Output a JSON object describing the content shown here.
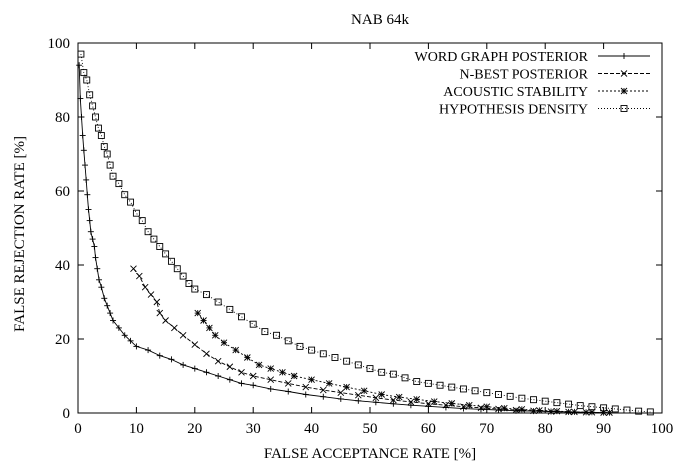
{
  "chart_data": {
    "type": "line",
    "title": "NAB 64k",
    "xlabel": "FALSE ACCEPTANCE RATE [%]",
    "ylabel": "FALSE REJECTION RATE [%]",
    "xlim": [
      0,
      100
    ],
    "ylim": [
      0,
      100
    ],
    "xticks": [
      0,
      10,
      20,
      30,
      40,
      50,
      60,
      70,
      80,
      90,
      100
    ],
    "yticks": [
      0,
      20,
      40,
      60,
      80,
      100
    ],
    "xtick_labels": [
      "0",
      "10",
      "20",
      "30",
      "40",
      "50",
      "60",
      "70",
      "80",
      "90",
      "100"
    ],
    "ytick_labels": [
      "0",
      "20",
      "40",
      "60",
      "80",
      "100"
    ],
    "grid": false,
    "legend_position": "top-right",
    "series": [
      {
        "name": "WORD GRAPH POSTERIOR",
        "marker": "plus",
        "dash": "solid",
        "points": [
          [
            0.2,
            94
          ],
          [
            0.4,
            85
          ],
          [
            0.6,
            80
          ],
          [
            0.8,
            75
          ],
          [
            1.0,
            71
          ],
          [
            1.2,
            67
          ],
          [
            1.4,
            63
          ],
          [
            1.6,
            59
          ],
          [
            1.8,
            55
          ],
          [
            2.0,
            52
          ],
          [
            2.2,
            49
          ],
          [
            2.5,
            47
          ],
          [
            2.8,
            45
          ],
          [
            3.0,
            42
          ],
          [
            3.3,
            39
          ],
          [
            3.6,
            36
          ],
          [
            4.0,
            34
          ],
          [
            4.5,
            31
          ],
          [
            5.0,
            29
          ],
          [
            5.5,
            27
          ],
          [
            6.0,
            25
          ],
          [
            7.0,
            23
          ],
          [
            8.0,
            21
          ],
          [
            9.0,
            19.5
          ],
          [
            10,
            18
          ],
          [
            12,
            17
          ],
          [
            14,
            15.5
          ],
          [
            16,
            14.5
          ],
          [
            18,
            13
          ],
          [
            20,
            12
          ],
          [
            22,
            11
          ],
          [
            24,
            10
          ],
          [
            26,
            9
          ],
          [
            28,
            8
          ],
          [
            30,
            7.5
          ],
          [
            33,
            6.5
          ],
          [
            36,
            5.8
          ],
          [
            39,
            5.0
          ],
          [
            42,
            4.4
          ],
          [
            45,
            3.8
          ],
          [
            48,
            3.3
          ],
          [
            51,
            2.9
          ],
          [
            54,
            2.5
          ],
          [
            57,
            2.1
          ],
          [
            60,
            1.8
          ],
          [
            63,
            1.5
          ],
          [
            66,
            1.2
          ],
          [
            69,
            1.0
          ],
          [
            72,
            0.8
          ],
          [
            75,
            0.6
          ],
          [
            78,
            0.5
          ],
          [
            81,
            0.4
          ],
          [
            84,
            0.3
          ],
          [
            87,
            0.2
          ],
          [
            90,
            0.1
          ]
        ]
      },
      {
        "name": "N-BEST POSTERIOR",
        "marker": "cross",
        "dash": "dashed",
        "points": [
          [
            9.5,
            39
          ],
          [
            10.5,
            37
          ],
          [
            11.5,
            34
          ],
          [
            12.5,
            32
          ],
          [
            13.5,
            30
          ],
          [
            14,
            27
          ],
          [
            15,
            25
          ],
          [
            16.5,
            23
          ],
          [
            18,
            21
          ],
          [
            20,
            18.5
          ],
          [
            22,
            16
          ],
          [
            24,
            14
          ],
          [
            26,
            12.5
          ],
          [
            28,
            11
          ],
          [
            30,
            10
          ],
          [
            33,
            9
          ],
          [
            36,
            8
          ],
          [
            39,
            7
          ],
          [
            42,
            6.2
          ],
          [
            45,
            5.5
          ],
          [
            48,
            4.8
          ],
          [
            51,
            4.1
          ],
          [
            54,
            3.5
          ],
          [
            57,
            3.0
          ],
          [
            60,
            2.5
          ],
          [
            63,
            2.1
          ],
          [
            66,
            1.7
          ],
          [
            69,
            1.4
          ],
          [
            72,
            1.1
          ],
          [
            75,
            0.8
          ],
          [
            78,
            0.6
          ],
          [
            81,
            0.4
          ],
          [
            84,
            0.3
          ],
          [
            87,
            0.2
          ],
          [
            90,
            0.1
          ]
        ]
      },
      {
        "name": "ACOUSTIC STABILITY",
        "marker": "star",
        "dash": "dotted",
        "points": [
          [
            20.5,
            27
          ],
          [
            21.5,
            25
          ],
          [
            22.5,
            23
          ],
          [
            23.5,
            21
          ],
          [
            25,
            19
          ],
          [
            27,
            17
          ],
          [
            29,
            15
          ],
          [
            31,
            13
          ],
          [
            33,
            12
          ],
          [
            35,
            11
          ],
          [
            37,
            10
          ],
          [
            40,
            9
          ],
          [
            43,
            8
          ],
          [
            46,
            7
          ],
          [
            49,
            6
          ],
          [
            52,
            5
          ],
          [
            55,
            4.3
          ],
          [
            58,
            3.7
          ],
          [
            61,
            3.1
          ],
          [
            64,
            2.6
          ],
          [
            67,
            2.1
          ],
          [
            70,
            1.7
          ],
          [
            73,
            1.3
          ],
          [
            76,
            1.0
          ],
          [
            79,
            0.7
          ],
          [
            82,
            0.5
          ],
          [
            85,
            0.3
          ],
          [
            88,
            0.2
          ],
          [
            91,
            0.1
          ]
        ]
      },
      {
        "name": "HYPOTHESIS DENSITY",
        "marker": "square",
        "dash": "finedotted",
        "points": [
          [
            0.5,
            97
          ],
          [
            1,
            92
          ],
          [
            1.5,
            90
          ],
          [
            2,
            86
          ],
          [
            2.5,
            83
          ],
          [
            3,
            80
          ],
          [
            3.5,
            77
          ],
          [
            4,
            75
          ],
          [
            4.5,
            72
          ],
          [
            5,
            70
          ],
          [
            5.5,
            67
          ],
          [
            6,
            64
          ],
          [
            7,
            62
          ],
          [
            8,
            59
          ],
          [
            9,
            57
          ],
          [
            10,
            54
          ],
          [
            11,
            52
          ],
          [
            12,
            49
          ],
          [
            13,
            47
          ],
          [
            14,
            45
          ],
          [
            15,
            43
          ],
          [
            16,
            41
          ],
          [
            17,
            39
          ],
          [
            18,
            37
          ],
          [
            19,
            35
          ],
          [
            20,
            33.5
          ],
          [
            22,
            32
          ],
          [
            24,
            30
          ],
          [
            26,
            28
          ],
          [
            28,
            26
          ],
          [
            30,
            24
          ],
          [
            32,
            22
          ],
          [
            34,
            21
          ],
          [
            36,
            19.5
          ],
          [
            38,
            18
          ],
          [
            40,
            17
          ],
          [
            42,
            16
          ],
          [
            44,
            15
          ],
          [
            46,
            14
          ],
          [
            48,
            13
          ],
          [
            50,
            12
          ],
          [
            52,
            11
          ],
          [
            54,
            10.5
          ],
          [
            56,
            9.5
          ],
          [
            58,
            8.5
          ],
          [
            60,
            8
          ],
          [
            62,
            7.5
          ],
          [
            64,
            7
          ],
          [
            66,
            6.5
          ],
          [
            68,
            6
          ],
          [
            70,
            5.5
          ],
          [
            72,
            5
          ],
          [
            74,
            4.5
          ],
          [
            76,
            4
          ],
          [
            78,
            3.6
          ],
          [
            80,
            3.2
          ],
          [
            82,
            2.8
          ],
          [
            84,
            2.4
          ],
          [
            86,
            2.0
          ],
          [
            88,
            1.7
          ],
          [
            90,
            1.4
          ],
          [
            92,
            1.1
          ],
          [
            94,
            0.8
          ],
          [
            96,
            0.5
          ],
          [
            98,
            0.3
          ]
        ]
      }
    ]
  }
}
